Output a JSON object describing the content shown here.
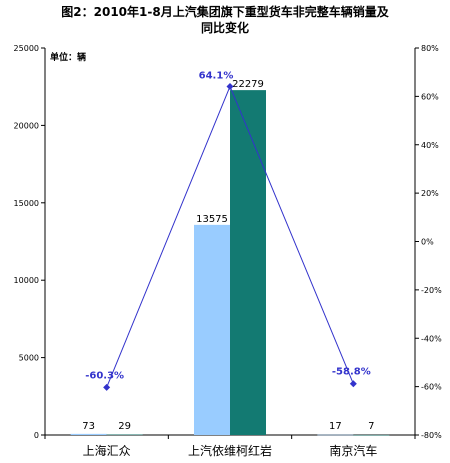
{
  "title_lines": [
    "图2：2010年1-8月上汽集团旗下重型货车非完整车辆销量及",
    "同比变化"
  ],
  "unit_label": "单位：辆",
  "colors": {
    "series_prev": "#99ccff",
    "series_curr": "#137a72",
    "line": "#3333cc"
  },
  "chart_data": {
    "type": "bar",
    "categories": [
      "上海汇众",
      "上汽依维柯红岩",
      "南京汽车"
    ],
    "series": [
      {
        "values": [
          73,
          13575,
          17
        ]
      },
      {
        "values": [
          29,
          22279,
          7
        ]
      }
    ],
    "line_series": {
      "values": [
        -60.3,
        64.1,
        -58.8
      ],
      "labels": [
        "-60.3%",
        "64.1%",
        "-58.8%"
      ]
    },
    "ylim": [
      0,
      25000
    ],
    "y_ticks": [
      "0",
      "5000",
      "10000",
      "15000",
      "20000",
      "25000"
    ],
    "y2lim": [
      -80,
      80
    ],
    "y2_ticks": [
      "-80%",
      "-60%",
      "-40%",
      "-20%",
      "0%",
      "20%",
      "40%",
      "60%",
      "80%"
    ],
    "bar_labels": [
      [
        "73",
        "13575",
        "17"
      ],
      [
        "29",
        "22279",
        "7"
      ]
    ],
    "grid": false,
    "legend": "none"
  }
}
